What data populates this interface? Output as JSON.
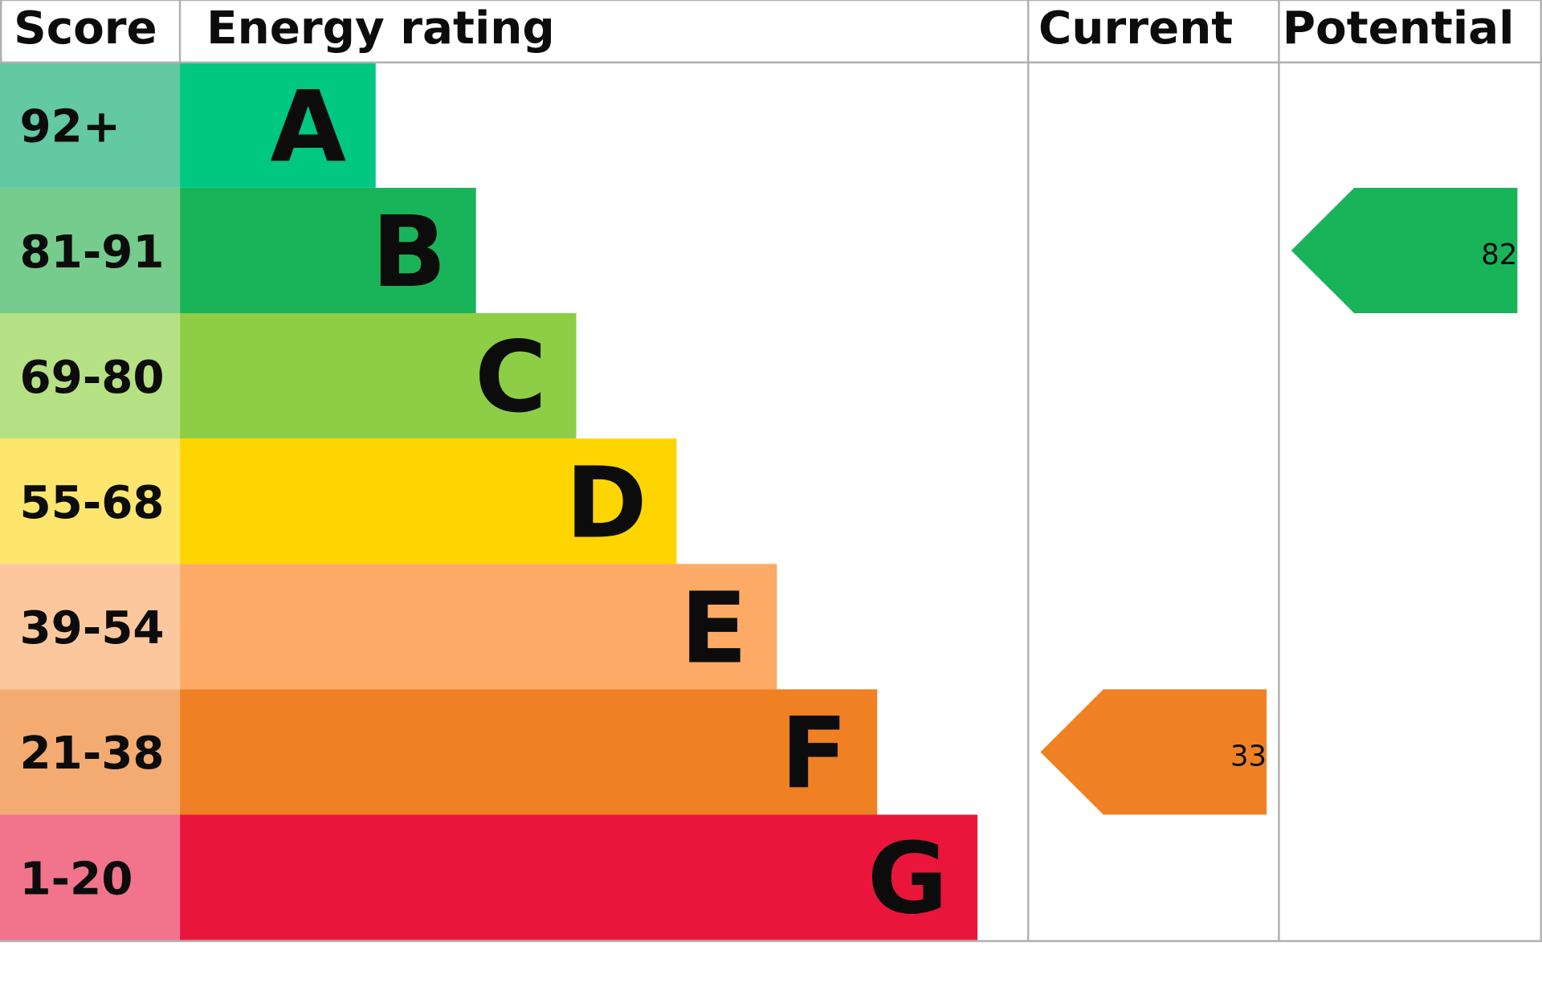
{
  "header": {
    "score": "Score",
    "energy_rating": "Energy rating",
    "current": "Current",
    "potential": "Potential"
  },
  "bands": [
    {
      "score": "92+",
      "letter": "A",
      "color": "#00c781",
      "score_color": "#63c8a4"
    },
    {
      "score": "81-91",
      "letter": "B",
      "color": "#19b459",
      "score_color": "#75cc8c"
    },
    {
      "score": "69-80",
      "letter": "C",
      "color": "#8dce46",
      "score_color": "#b5e084"
    },
    {
      "score": "55-68",
      "letter": "D",
      "color": "#ffd500",
      "score_color": "#fde56e"
    },
    {
      "score": "39-54",
      "letter": "E",
      "color": "#fcaa65",
      "score_color": "#fdc79d"
    },
    {
      "score": "21-38",
      "letter": "F",
      "color": "#ef8023",
      "score_color": "#f3ab72"
    },
    {
      "score": "1-20",
      "letter": "G",
      "color": "#e9153b",
      "score_color": "#f2748c"
    }
  ],
  "current": {
    "value": 33
  },
  "potential": {
    "value": 82
  }
}
